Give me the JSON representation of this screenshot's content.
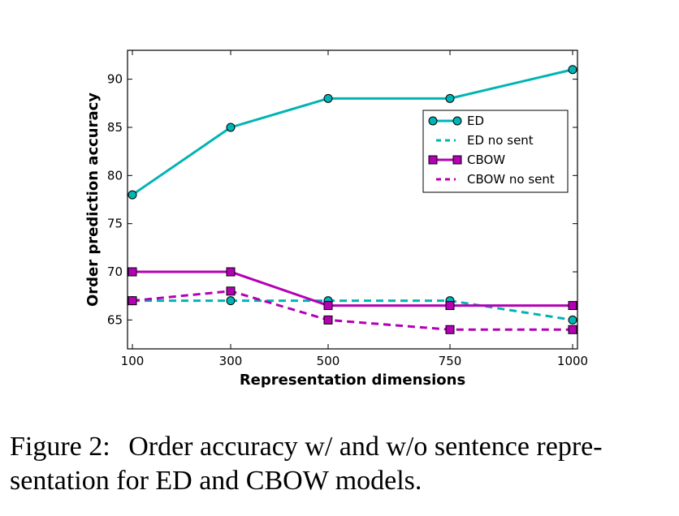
{
  "chart_data": {
    "type": "line",
    "xlabel": "Representation dimensions",
    "ylabel": "Order prediction accuracy",
    "x_tick_labels": [
      "100",
      "300",
      "500",
      "750",
      "1000"
    ],
    "y_ticks": [
      65,
      70,
      75,
      80,
      85,
      90
    ],
    "ylim": [
      62,
      93
    ],
    "grid": false,
    "legend_position": "upper-right",
    "series": [
      {
        "name": "ED",
        "values": [
          78,
          85,
          88,
          88,
          91
        ],
        "color": "#00b4b4",
        "style": "solid",
        "marker": "circle"
      },
      {
        "name": "ED no sent",
        "values": [
          67,
          67,
          67,
          67,
          65
        ],
        "color": "#00b4b4",
        "style": "dashed",
        "marker": "circle"
      },
      {
        "name": "CBOW",
        "values": [
          70,
          70,
          66.5,
          66.5,
          66.5
        ],
        "color": "#b400b4",
        "style": "solid",
        "marker": "square"
      },
      {
        "name": "CBOW no sent",
        "values": [
          67,
          68,
          65,
          64,
          64
        ],
        "color": "#b400b4",
        "style": "dashed",
        "marker": "square"
      }
    ]
  },
  "caption": {
    "label": "Figure 2:",
    "text": "Order accuracy w/ and w/o sentence repre-sentation for ED and CBOW models."
  }
}
